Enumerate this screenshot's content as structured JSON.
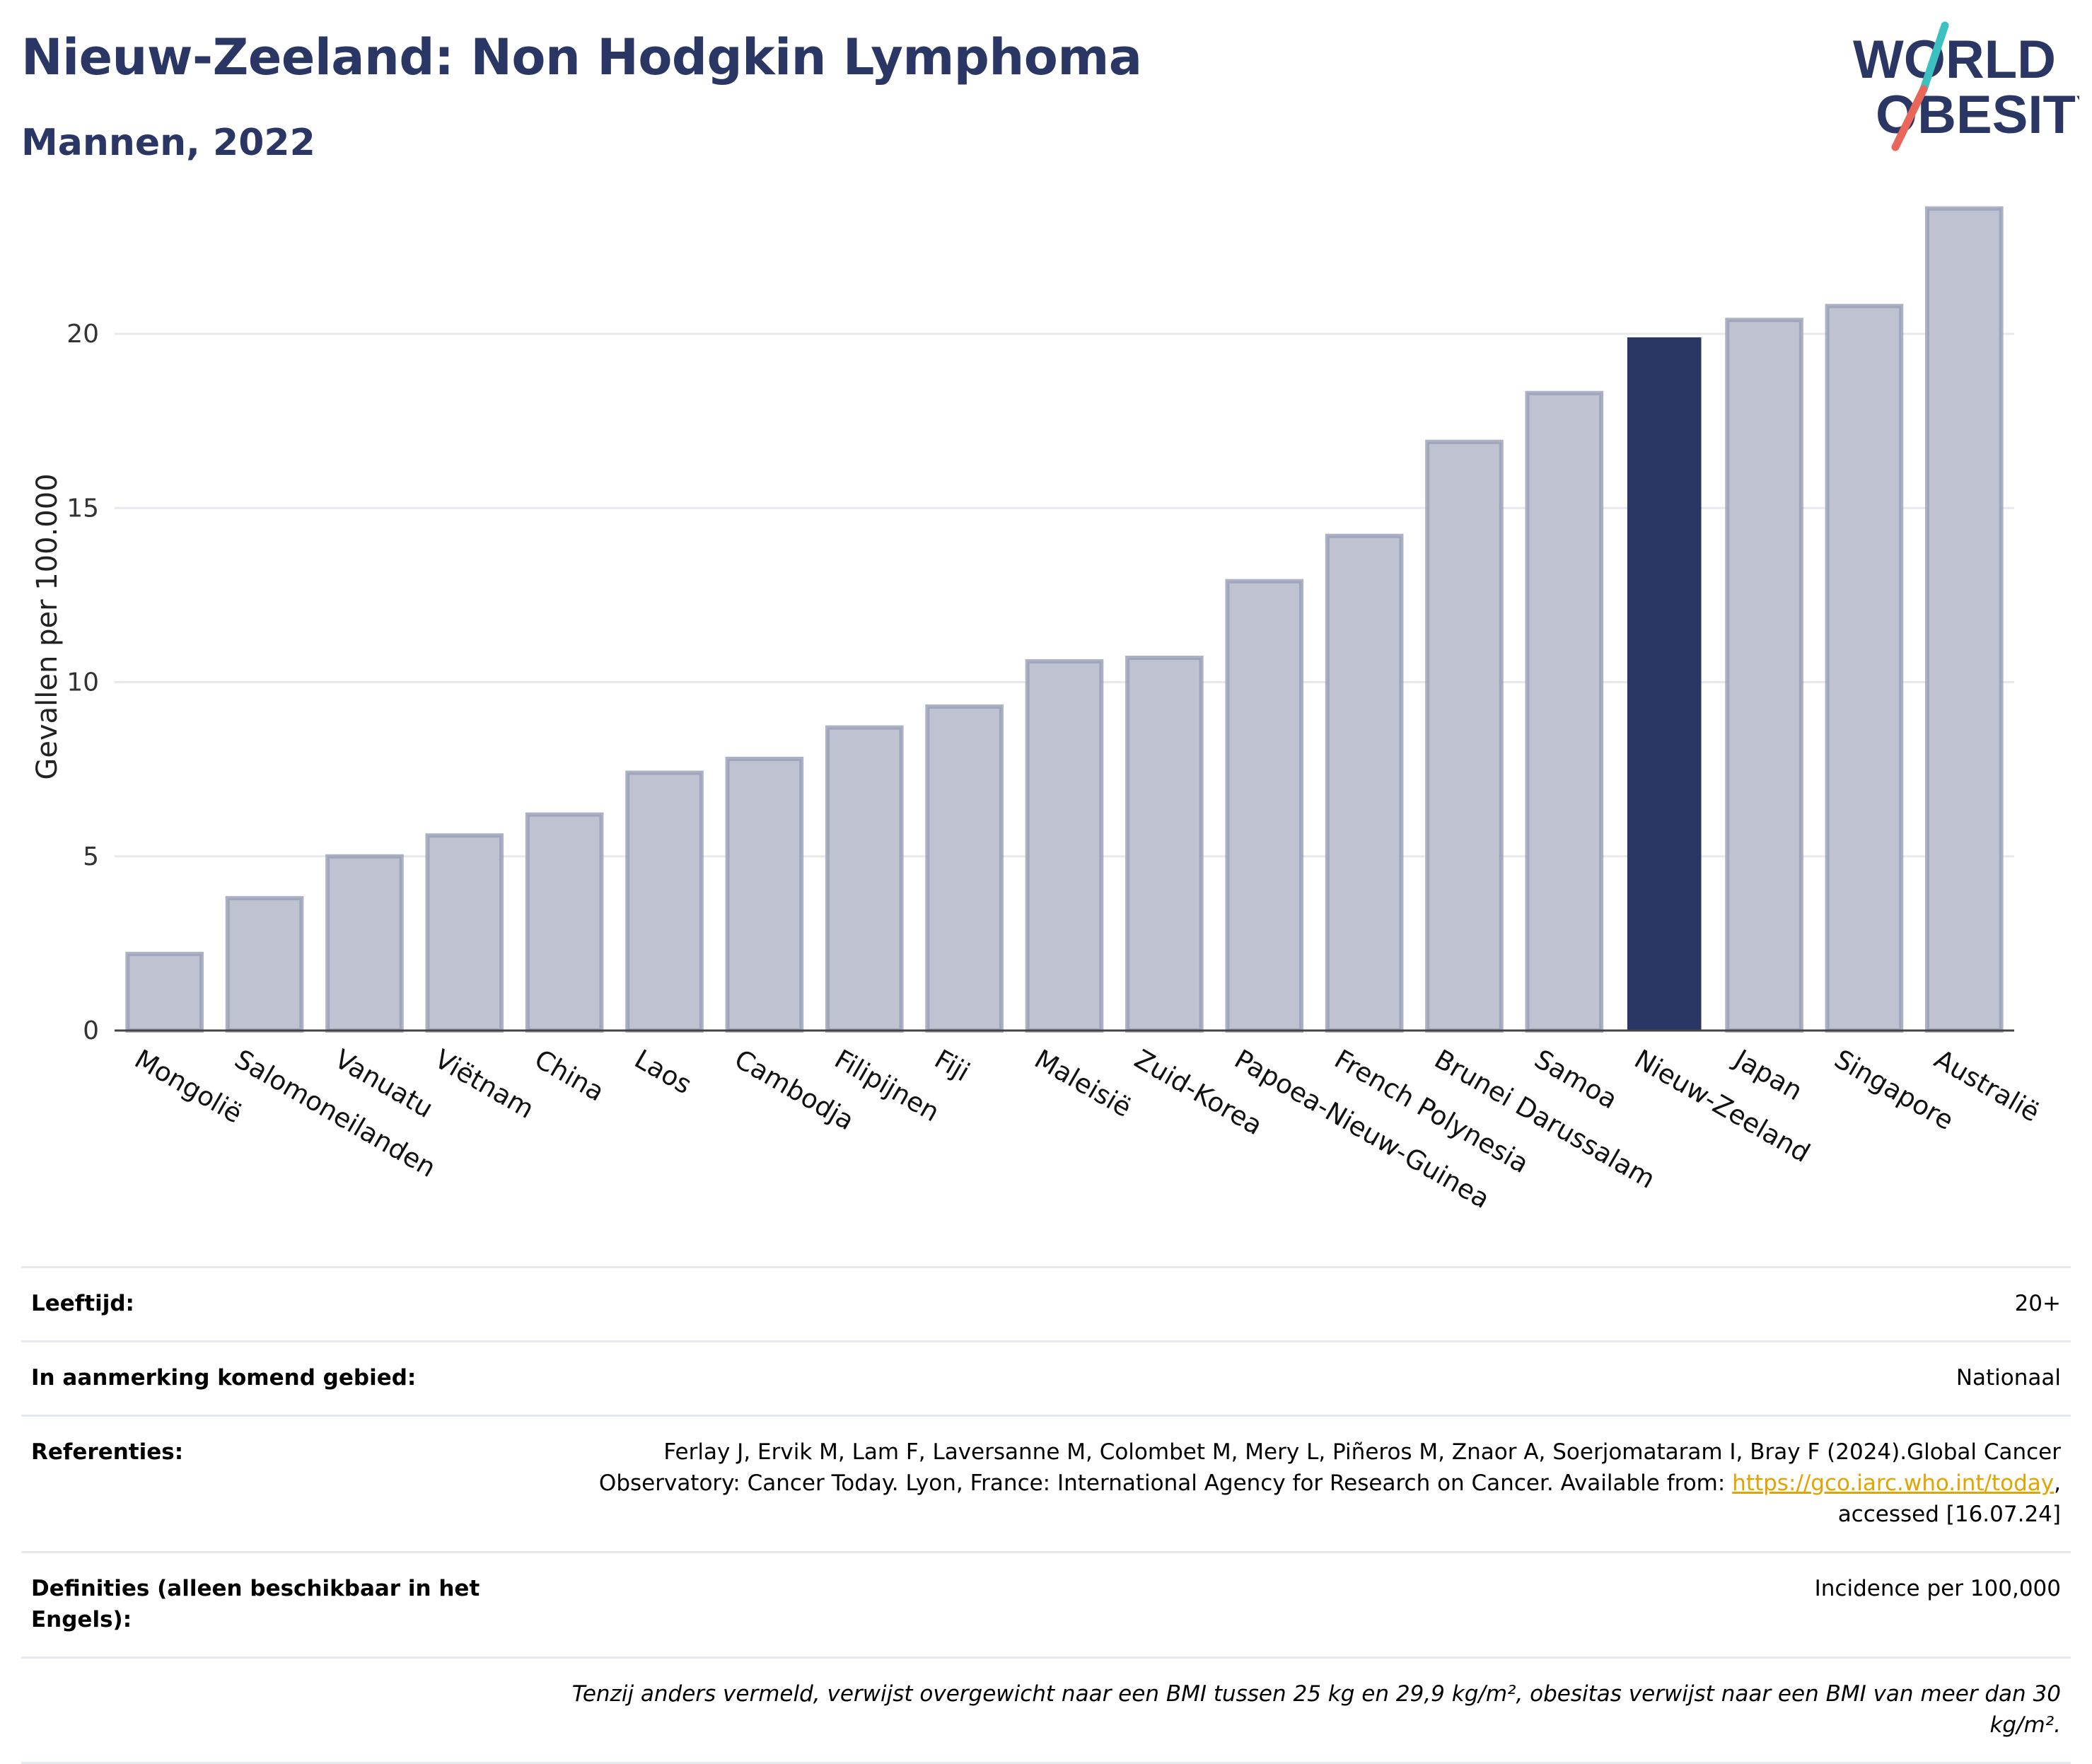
{
  "header": {
    "title": "Nieuw-Zeeland: Non Hodgkin Lymphoma",
    "subtitle": "Mannen, 2022"
  },
  "logo": {
    "line1": "WORLD",
    "line2": "OBESITY",
    "text_color": "#2a3663",
    "accent_teal": "#3cc0c0",
    "accent_red": "#e8675a"
  },
  "chart_data": {
    "type": "bar",
    "ylabel": "Gevallen per 100.000",
    "xlabel": "",
    "ylim": [
      0,
      24
    ],
    "yticks": [
      0,
      5,
      10,
      15,
      20
    ],
    "grid": true,
    "highlight": "Nieuw-Zeeland",
    "colors": {
      "bar": "#bfc3d1",
      "bar_edge": "#979db4",
      "highlight": "#2a3663",
      "grid": "#e8e9ee",
      "axis": "#444444"
    },
    "categories": [
      "Mongolië",
      "Salomoneilanden",
      "Vanuatu",
      "Viëtnam",
      "China",
      "Laos",
      "Cambodja",
      "Filipijnen",
      "Fiji",
      "Maleisië",
      "Zuid-Korea",
      "Papoea-Nieuw-Guinea",
      "French Polynesia",
      "Brunei Darussalam",
      "Samoa",
      "Nieuw-Zeeland",
      "Japan",
      "Singapore",
      "Australië"
    ],
    "values": [
      2.2,
      3.8,
      5.0,
      5.6,
      6.2,
      7.4,
      7.8,
      8.7,
      9.3,
      10.6,
      10.7,
      12.9,
      14.2,
      16.9,
      18.3,
      19.9,
      20.4,
      20.8,
      23.6
    ]
  },
  "meta": {
    "age_label": "Leeftijd:",
    "age_value": "20+",
    "area_label": "In aanmerking komend gebied:",
    "area_value": "Nationaal",
    "ref_label": "Referenties:",
    "ref_text_1": "Ferlay J, Ervik M, Lam F, Laversanne M, Colombet M, Mery L, Piñeros M, Znaor A, Soerjomataram I, Bray F (2024).Global Cancer Observatory: Cancer Today. Lyon, France: International Agency for Research on Cancer. Available from: ",
    "ref_link": "https://gco.iarc.who.int/today",
    "ref_text_2": ", accessed [16.07.24]",
    "def_label": "Definities (alleen beschikbaar in het Engels):",
    "def_value": "Incidence per 100,000",
    "note": "Tenzij anders vermeld, verwijst overgewicht naar een BMI tussen 25 kg en 29,9 kg/m², obesitas verwijst naar een BMI van meer dan 30 kg/m²."
  }
}
